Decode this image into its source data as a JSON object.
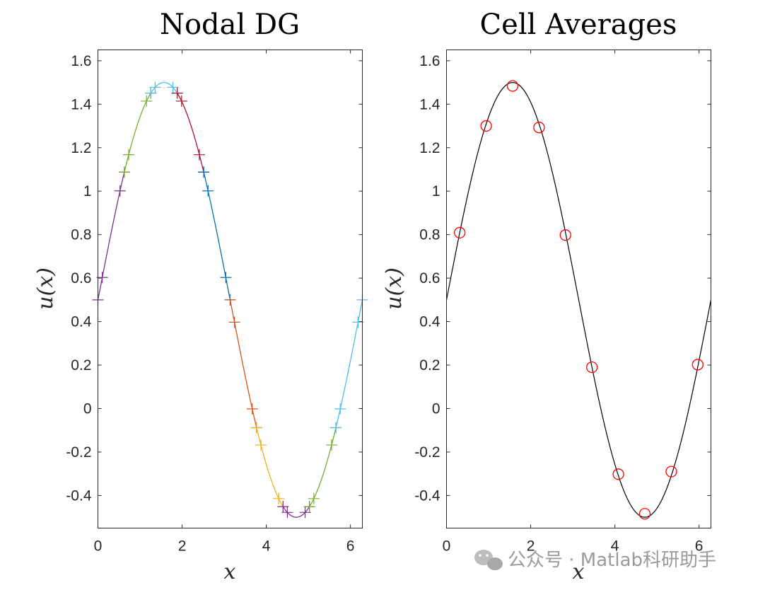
{
  "chart_data": [
    {
      "type": "line",
      "title": "Nodal DG",
      "xlabel": "x",
      "ylabel": "u(x)",
      "xlim": [
        0,
        6.2832
      ],
      "ylim": [
        -0.55,
        1.65
      ],
      "xticks": [
        0,
        2,
        4,
        6
      ],
      "yticks": [
        1.6,
        1.4,
        1.2,
        1,
        0.8,
        0.6,
        0.4,
        0.2,
        0,
        -0.2,
        -0.4
      ],
      "ytick_labels": [
        "1.6",
        "1.4",
        "1.2",
        "1",
        "0.8",
        "0.6",
        "0.4",
        "0.2",
        "0",
        "-0.2",
        "-0.4"
      ],
      "function": "0.5 + sin(x)",
      "elements": 10,
      "nodes_per_element": 6,
      "marker": "+",
      "colors": [
        "#7E2F8E",
        "#77AC30",
        "#4DBEEE",
        "#A2142F",
        "#0072BD",
        "#D95319",
        "#EDB120",
        "#7E2F8E",
        "#77AC30",
        "#4DBEEE"
      ]
    },
    {
      "type": "line",
      "title": "Cell Averages",
      "xlabel": "x",
      "ylabel": "u(x)",
      "xlim": [
        0,
        6.2832
      ],
      "ylim": [
        -0.55,
        1.65
      ],
      "xticks": [
        0,
        2,
        4,
        6
      ],
      "yticks": [
        1.6,
        1.4,
        1.2,
        1,
        0.8,
        0.6,
        0.4,
        0.2,
        0,
        -0.2,
        -0.4
      ],
      "ytick_labels": [
        "1.6",
        "1.4",
        "1.2",
        "1",
        "0.8",
        "0.6",
        "0.4",
        "0.2",
        "0",
        "-0.2",
        "-0.4"
      ],
      "function": "0.5 + sin(x)",
      "line_color": "#000000",
      "marker": "o",
      "marker_color": "#FF0000",
      "averages": {
        "x": [
          0.314,
          0.942,
          1.571,
          2.199,
          2.827,
          3.456,
          4.084,
          4.712,
          5.341,
          5.969
        ],
        "y": [
          0.809,
          1.3,
          1.484,
          1.293,
          0.798,
          0.19,
          -0.302,
          -0.484,
          -0.29,
          0.202
        ]
      }
    }
  ],
  "watermark": "公众号 · Matlab科研助手",
  "watermark_icon": "wechat-icon"
}
